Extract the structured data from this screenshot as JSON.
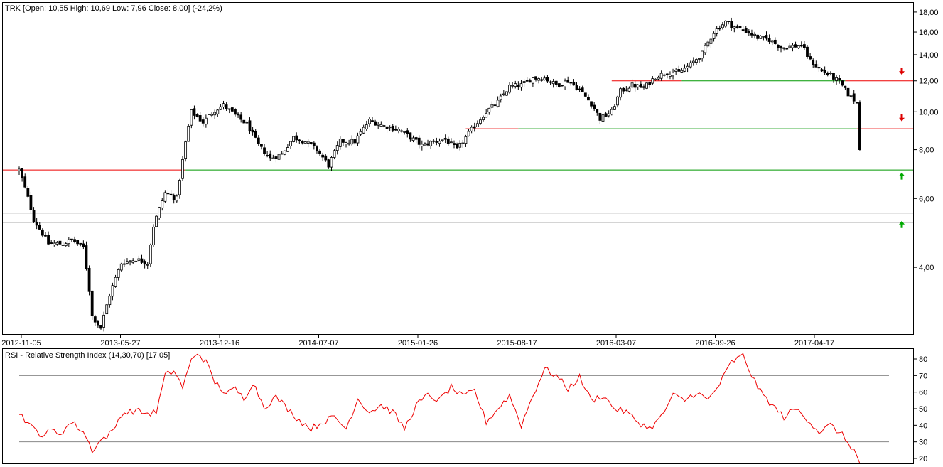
{
  "chart_data": [
    {
      "type": "candlestick",
      "title": "TRK [Open: 10,55  High: 10,69  Low: 7,96  Close: 8,00] (-24,2%)",
      "ohlc_info": {
        "open": 10.55,
        "high": 10.69,
        "low": 7.96,
        "close": 8.0,
        "change_pct": -24.2
      },
      "y_scale": "log",
      "ylim": [
        2.7,
        19.0
      ],
      "y_ticks": [
        4,
        6,
        8,
        10,
        12,
        14,
        16,
        18
      ],
      "y_tick_labels": [
        "4,00",
        "6,00",
        "8,00",
        "10,00",
        "12,00",
        "14,00",
        "16,00",
        "18,00"
      ],
      "x_tick_labels": [
        "2012-11-05",
        "2013-05-27",
        "2013-12-16",
        "2014-07-07",
        "2015-01-26",
        "2015-08-17",
        "2016-03-07",
        "2016-09-26",
        "2017-04-17"
      ],
      "price_path": [
        [
          0,
          7.1
        ],
        [
          5,
          5.3
        ],
        [
          10,
          4.6
        ],
        [
          15,
          4.6
        ],
        [
          18,
          4.7
        ],
        [
          22,
          4.5
        ],
        [
          25,
          3.0
        ],
        [
          28,
          2.8
        ],
        [
          31,
          3.4
        ],
        [
          35,
          4.1
        ],
        [
          40,
          4.2
        ],
        [
          44,
          4.1
        ],
        [
          46,
          5.1
        ],
        [
          50,
          6.2
        ],
        [
          54,
          6.0
        ],
        [
          56,
          7.5
        ],
        [
          59,
          10.0
        ],
        [
          63,
          9.4
        ],
        [
          67,
          10.1
        ],
        [
          70,
          10.4
        ],
        [
          74,
          9.8
        ],
        [
          78,
          9.3
        ],
        [
          82,
          8.2
        ],
        [
          86,
          7.6
        ],
        [
          90,
          7.8
        ],
        [
          94,
          8.6
        ],
        [
          98,
          8.4
        ],
        [
          102,
          8.0
        ],
        [
          106,
          7.3
        ],
        [
          110,
          8.4
        ],
        [
          115,
          8.4
        ],
        [
          120,
          9.5
        ],
        [
          125,
          9.2
        ],
        [
          130,
          9.0
        ],
        [
          134,
          8.6
        ],
        [
          138,
          8.2
        ],
        [
          142,
          8.4
        ],
        [
          146,
          8.5
        ],
        [
          150,
          8.0
        ],
        [
          155,
          9.0
        ],
        [
          160,
          10.0
        ],
        [
          164,
          10.6
        ],
        [
          168,
          11.6
        ],
        [
          172,
          11.7
        ],
        [
          176,
          12.2
        ],
        [
          180,
          12.2
        ],
        [
          184,
          11.7
        ],
        [
          188,
          12.0
        ],
        [
          192,
          11.4
        ],
        [
          196,
          10.5
        ],
        [
          199,
          9.6
        ],
        [
          203,
          10.0
        ],
        [
          206,
          11.3
        ],
        [
          210,
          11.7
        ],
        [
          214,
          11.5
        ],
        [
          218,
          12.3
        ],
        [
          222,
          12.6
        ],
        [
          226,
          12.6
        ],
        [
          230,
          13.2
        ],
        [
          234,
          14.1
        ],
        [
          238,
          16.0
        ],
        [
          242,
          17.0
        ],
        [
          245,
          16.5
        ],
        [
          249,
          16.1
        ],
        [
          253,
          15.5
        ],
        [
          257,
          15.3
        ],
        [
          261,
          14.6
        ],
        [
          265,
          14.7
        ],
        [
          268,
          14.8
        ],
        [
          271,
          13.5
        ],
        [
          275,
          12.7
        ],
        [
          278,
          12.4
        ],
        [
          281,
          11.9
        ],
        [
          284,
          11.1
        ],
        [
          287,
          10.55
        ],
        [
          288,
          8.0
        ]
      ],
      "support_resistance_lines": [
        {
          "role": "resistance",
          "from": 0,
          "to": 57,
          "value": 7.1,
          "color": "#ee0000"
        },
        {
          "role": "support",
          "from": 57,
          "to": 299,
          "value": 7.1,
          "color": "#009900"
        },
        {
          "role": "resistance",
          "from": 153,
          "to": 171,
          "value": 9.05,
          "color": "#ee0000"
        },
        {
          "role": "support",
          "from": 171,
          "to": 287,
          "value": 9.05,
          "color": "#009900"
        },
        {
          "role": "resistance",
          "from": 287,
          "to": 299,
          "value": 9.05,
          "color": "#ee0000"
        },
        {
          "role": "resistance",
          "from": 203,
          "to": 227,
          "value": 12.0,
          "color": "#ee0000"
        },
        {
          "role": "support",
          "from": 227,
          "to": 283,
          "value": 12.0,
          "color": "#009900"
        },
        {
          "role": "resistance",
          "from": 283,
          "to": 299,
          "value": 12.0,
          "color": "#ee0000"
        }
      ],
      "reference_lines": [
        5.5,
        5.2
      ],
      "signal_arrows": [
        {
          "direction": "down",
          "value": 12.7,
          "color": "#dd0000"
        },
        {
          "direction": "down",
          "value": 9.65,
          "color": "#dd0000"
        },
        {
          "direction": "up",
          "value": 6.85,
          "color": "#00aa00"
        },
        {
          "direction": "up",
          "value": 5.15,
          "color": "#00aa00"
        }
      ]
    },
    {
      "type": "line",
      "title": "RSI - Relative Strength Index (14,30,70) [17,05]",
      "ylim": [
        17,
        86
      ],
      "y_ticks": [
        20,
        30,
        40,
        50,
        60,
        70,
        80
      ],
      "reference_levels": [
        30,
        70
      ],
      "color": "#ee0000",
      "last_value": 17.05,
      "series_path": [
        [
          0,
          48
        ],
        [
          4,
          39
        ],
        [
          8,
          34
        ],
        [
          11,
          37
        ],
        [
          14,
          35
        ],
        [
          18,
          42
        ],
        [
          22,
          36
        ],
        [
          25,
          25
        ],
        [
          28,
          31
        ],
        [
          32,
          36
        ],
        [
          35,
          47
        ],
        [
          40,
          49
        ],
        [
          44,
          47
        ],
        [
          47,
          48
        ],
        [
          50,
          70
        ],
        [
          53,
          73
        ],
        [
          56,
          63
        ],
        [
          59,
          79
        ],
        [
          61,
          84
        ],
        [
          64,
          78
        ],
        [
          67,
          66
        ],
        [
          71,
          59
        ],
        [
          74,
          62
        ],
        [
          77,
          56
        ],
        [
          80,
          66
        ],
        [
          84,
          51
        ],
        [
          88,
          57
        ],
        [
          92,
          50
        ],
        [
          96,
          43
        ],
        [
          100,
          38
        ],
        [
          104,
          42
        ],
        [
          108,
          45
        ],
        [
          112,
          38
        ],
        [
          116,
          56
        ],
        [
          120,
          48
        ],
        [
          124,
          52
        ],
        [
          128,
          48
        ],
        [
          132,
          38
        ],
        [
          136,
          52
        ],
        [
          140,
          58
        ],
        [
          144,
          55
        ],
        [
          148,
          63
        ],
        [
          152,
          57
        ],
        [
          156,
          61
        ],
        [
          160,
          42
        ],
        [
          164,
          50
        ],
        [
          168,
          58
        ],
        [
          172,
          40
        ],
        [
          176,
          58
        ],
        [
          180,
          74
        ],
        [
          184,
          70
        ],
        [
          188,
          62
        ],
        [
          192,
          69
        ],
        [
          196,
          55
        ],
        [
          200,
          58
        ],
        [
          204,
          50
        ],
        [
          208,
          48
        ],
        [
          212,
          42
        ],
        [
          216,
          38
        ],
        [
          220,
          45
        ],
        [
          224,
          58
        ],
        [
          228,
          55
        ],
        [
          232,
          60
        ],
        [
          236,
          55
        ],
        [
          240,
          65
        ],
        [
          244,
          78
        ],
        [
          248,
          82
        ],
        [
          251,
          70
        ],
        [
          254,
          60
        ],
        [
          258,
          52
        ],
        [
          262,
          45
        ],
        [
          266,
          50
        ],
        [
          270,
          44
        ],
        [
          274,
          36
        ],
        [
          278,
          40
        ],
        [
          282,
          34
        ],
        [
          286,
          25
        ],
        [
          288,
          17
        ]
      ]
    }
  ]
}
